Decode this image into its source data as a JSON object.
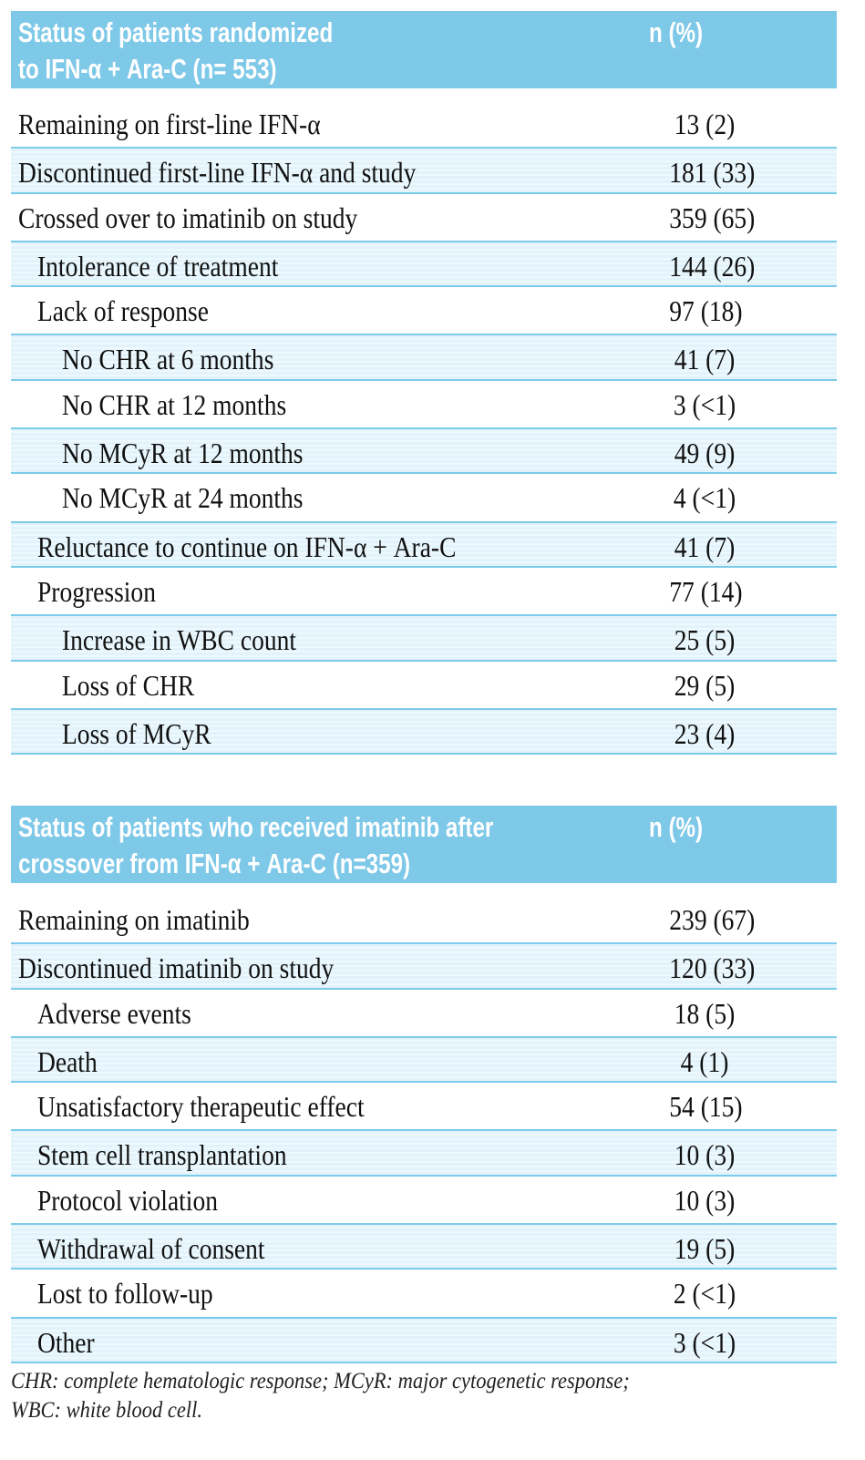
{
  "tables": [
    {
      "header": {
        "title_line1": "Status of patients randomized",
        "title_line2": "to IFN-α + Ara-C (n= 553)",
        "col": "n (%)"
      },
      "rows": [
        {
          "label": "Remaining on first-line IFN-α",
          "value": "13 (2)",
          "indent": 0
        },
        {
          "label": "Discontinued first-line IFN-α and study",
          "value": "181 (33)",
          "indent": 0
        },
        {
          "label": "Crossed over to imatinib on study",
          "value": "359 (65)",
          "indent": 0
        },
        {
          "label": "Intolerance of treatment",
          "value": "144 (26)",
          "indent": 1
        },
        {
          "label": "Lack of response",
          "value": "97 (18)",
          "indent": 1
        },
        {
          "label": "No CHR at 6 months",
          "value": "41 (7)",
          "indent": 2
        },
        {
          "label": "No CHR at 12 months",
          "value": "3 (<1)",
          "indent": 2
        },
        {
          "label": "No MCyR at 12 months",
          "value": "49 (9)",
          "indent": 2
        },
        {
          "label": "No MCyR at 24 months",
          "value": "4 (<1)",
          "indent": 2
        },
        {
          "label": "Reluctance to continue on IFN-α + Ara-C",
          "value": "41 (7)",
          "indent": 1
        },
        {
          "label": "Progression",
          "value": "77 (14)",
          "indent": 1
        },
        {
          "label": "Increase in WBC count",
          "value": "25 (5)",
          "indent": 2
        },
        {
          "label": "Loss of CHR",
          "value": "29 (5)",
          "indent": 2
        },
        {
          "label": "Loss of MCyR",
          "value": "23 (4)",
          "indent": 2
        }
      ]
    },
    {
      "header": {
        "title_line1": "Status of patients who received imatinib after",
        "title_line2": "crossover from IFN-α + Ara-C (n=359)",
        "col": "n (%)"
      },
      "rows": [
        {
          "label": "Remaining on imatinib",
          "value": "239 (67)",
          "indent": 0
        },
        {
          "label": "Discontinued imatinib on study",
          "value": "120 (33)",
          "indent": 0
        },
        {
          "label": "Adverse events",
          "value": "18 (5)",
          "indent": 1
        },
        {
          "label": "Death",
          "value": "4 (1)",
          "indent": 1
        },
        {
          "label": "Unsatisfactory therapeutic effect",
          "value": "54 (15)",
          "indent": 1
        },
        {
          "label": "Stem cell transplantation",
          "value": "10 (3)",
          "indent": 1
        },
        {
          "label": "Protocol violation",
          "value": "10 (3)",
          "indent": 1
        },
        {
          "label": "Withdrawal of consent",
          "value": "19 (5)",
          "indent": 1
        },
        {
          "label": "Lost to follow-up",
          "value": "2 (<1)",
          "indent": 1
        },
        {
          "label": "Other",
          "value": "3 (<1)",
          "indent": 1
        }
      ]
    }
  ],
  "footnote": {
    "line1": "CHR: complete hematologic response; MCyR: major cytogenetic response;",
    "line2": "WBC: white blood cell."
  },
  "colors": {
    "header_bg": "#7ec8e8",
    "stripe": "#e2f3fb",
    "rule": "#7ccbe8"
  }
}
